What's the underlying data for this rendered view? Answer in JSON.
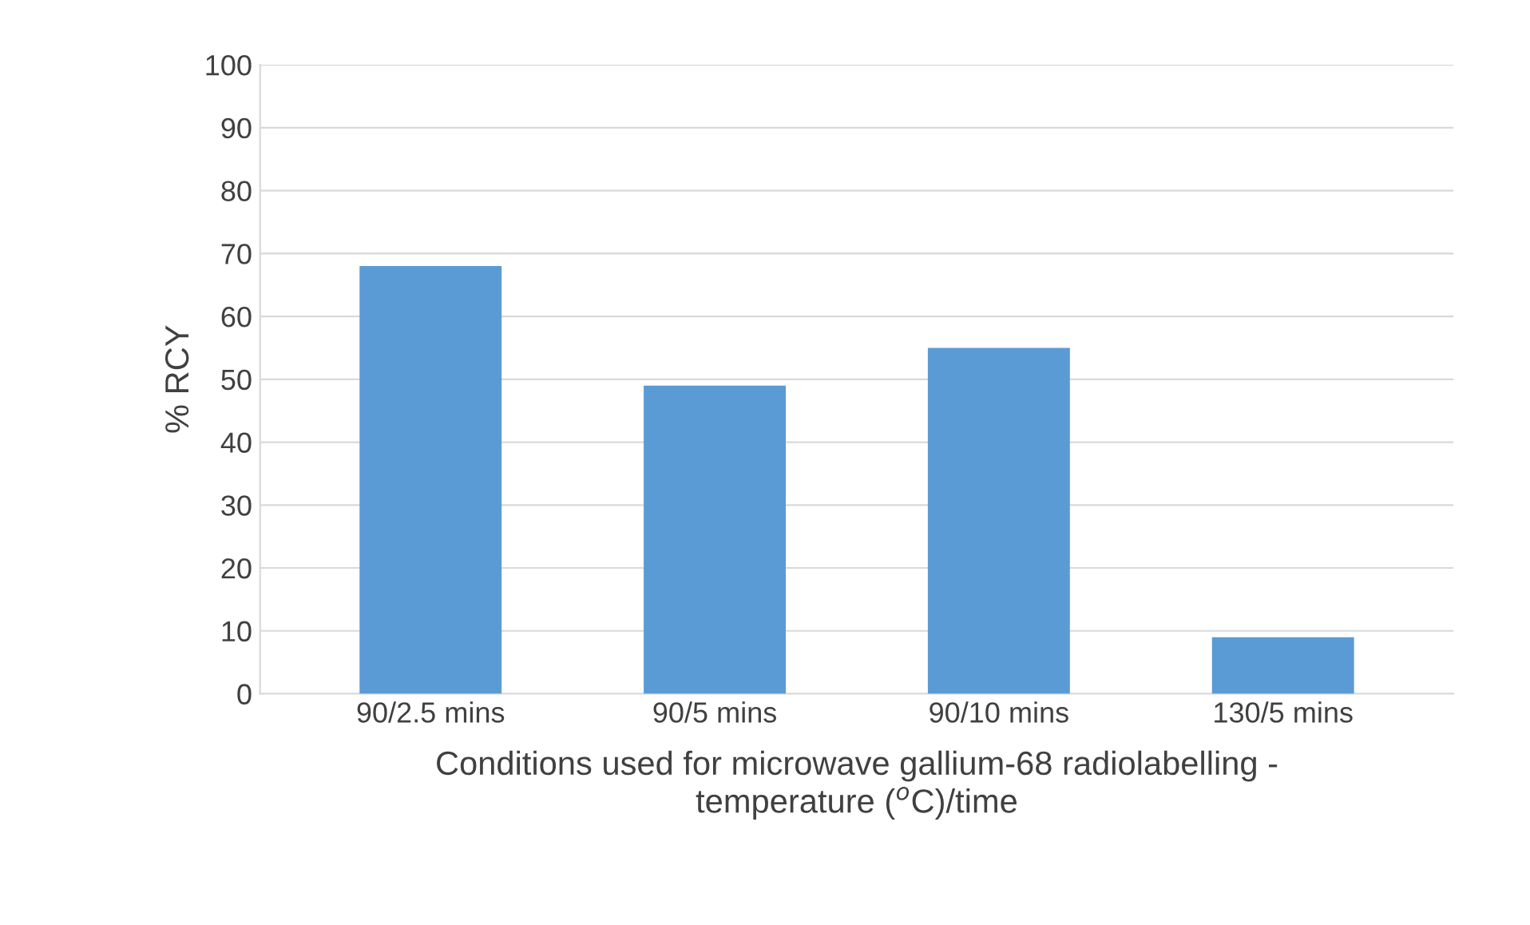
{
  "chart_data": {
    "type": "bar",
    "categories": [
      "90/2.5 mins",
      "90/5 mins",
      "90/10 mins",
      "130/5 mins"
    ],
    "values": [
      68,
      49,
      55,
      9
    ],
    "color": "#5b9bd5",
    "ylabel": "% RCY",
    "xlabel": "Conditions used for microwave gallium-68 radiolabelling -\ntemperature ($^{o}$C)/time",
    "ylim": [
      0,
      100
    ],
    "yticks": [
      0,
      10,
      20,
      30,
      40,
      50,
      60,
      70,
      80,
      90,
      100
    ],
    "grid": "y"
  }
}
